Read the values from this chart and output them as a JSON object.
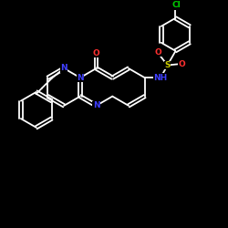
{
  "bg_color": "#000000",
  "bond_color": "#ffffff",
  "n_color": "#4040ff",
  "o_color": "#ff3030",
  "s_color": "#cccc00",
  "cl_color": "#00cc00",
  "line_width": 1.3,
  "font_size": 6.5,
  "figsize": [
    2.5,
    2.5
  ],
  "dpi": 100,
  "xlim": [
    0,
    10
  ],
  "ylim": [
    0,
    10
  ]
}
